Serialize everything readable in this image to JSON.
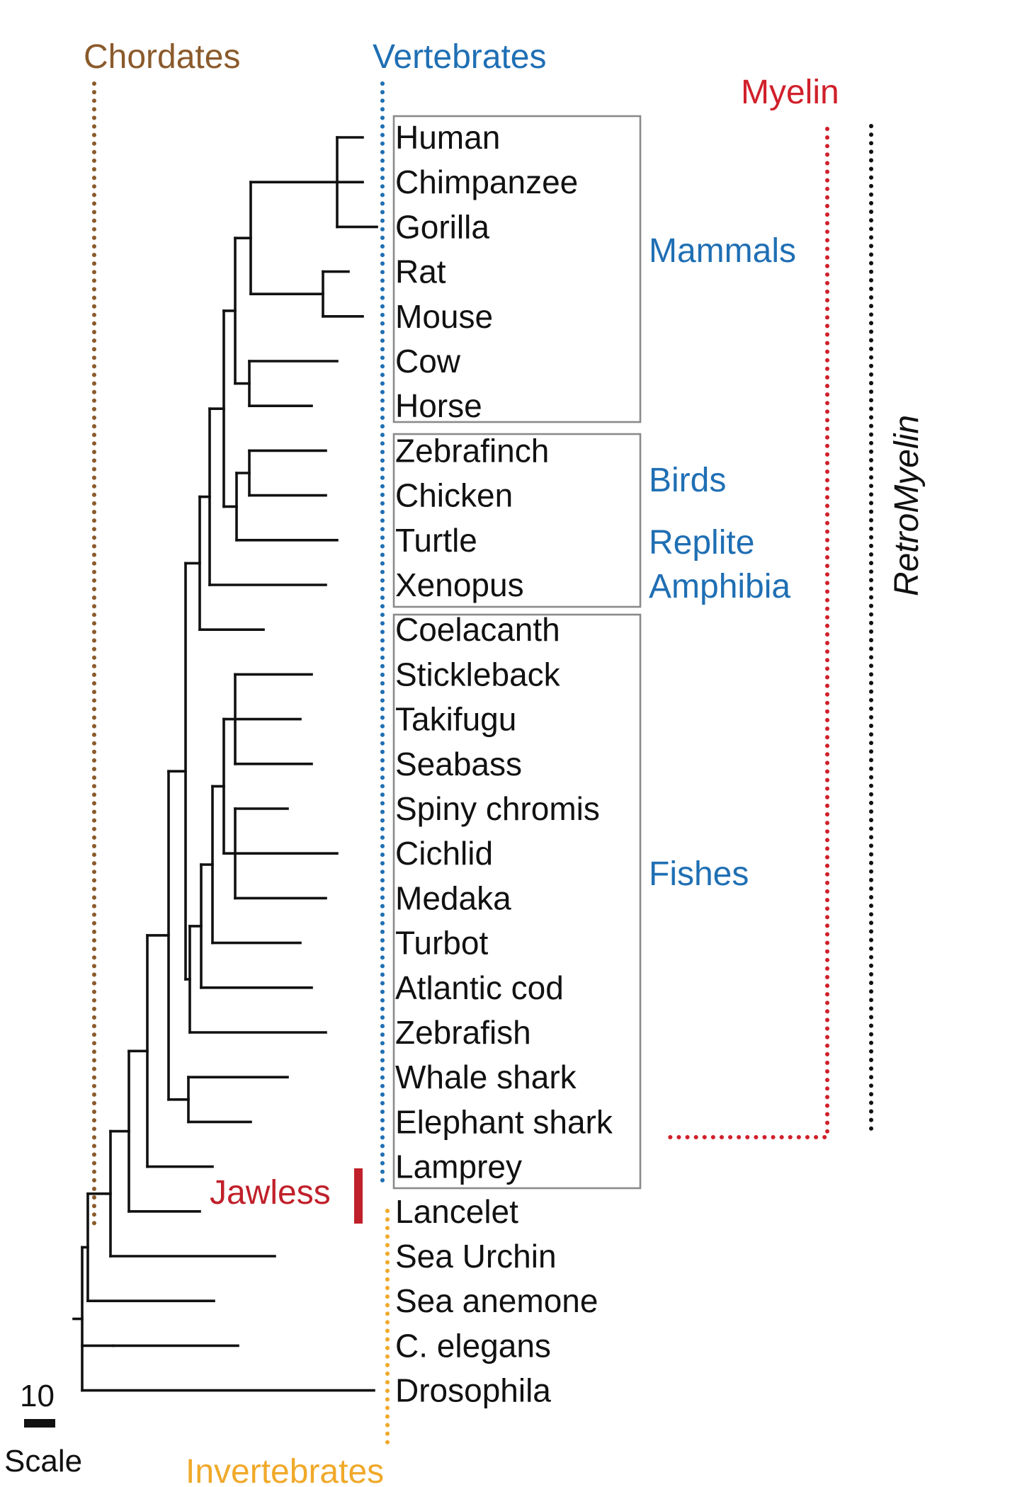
{
  "headers": {
    "chordates": "Chordates",
    "vertebrates": "Vertebrates",
    "myelin": "Myelin",
    "retromyelin": "RetroMyelin",
    "invertebrates": "Invertebrates",
    "jawless": "Jawless"
  },
  "groups": {
    "mammals": "Mammals",
    "birds": "Birds",
    "reptile": "Replite",
    "amphibia": "Amphibia",
    "fishes": "Fishes"
  },
  "taxa": [
    "Human",
    "Chimpanzee",
    "Gorilla",
    "Rat",
    "Mouse",
    "Cow",
    "Horse",
    "Zebrafinch",
    "Chicken",
    "Turtle",
    "Xenopus",
    "Coelacanth",
    "Stickleback",
    "Takifugu",
    "Seabass",
    "Spiny chromis",
    "Cichlid",
    "Medaka",
    "Turbot",
    "Atlantic cod",
    "Zebrafish",
    "Whale shark",
    "Elephant shark",
    "Lamprey",
    "Lancelet",
    "Sea Urchin",
    "Sea anemone",
    "C. elegans",
    "Drosophila"
  ],
  "scale": {
    "value": "10",
    "label": "Scale"
  },
  "colors": {
    "chordates": "#8b5a2b",
    "vertebrates": "#1f6fb4",
    "myelin": "#d0202a",
    "retromyelin": "#111111",
    "invertebrates": "#f0a92a",
    "jawless": "#c0202a",
    "groups": "#1f6fb4"
  }
}
